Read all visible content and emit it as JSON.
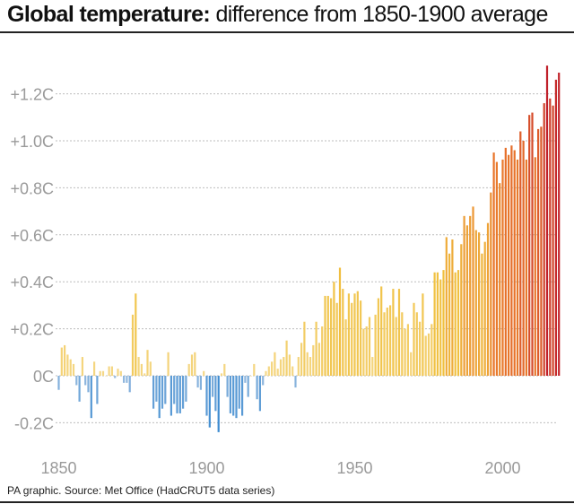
{
  "title": {
    "bold": "Global temperature:",
    "light": " difference from 1850-1900 average"
  },
  "source": "PA graphic. Source: Met Office (HadCRUT5 data series)",
  "colors": {
    "negative_light": "#9cbde0",
    "negative_dark": "#3a8ad0",
    "warm_low": "#f5d98a",
    "warm_mid": "#f0c040",
    "warm_high": "#e8742a",
    "hot": "#c0202a",
    "grid": "#bdbdbd",
    "tick_text": "#9a9a9a"
  },
  "chart_data": {
    "type": "bar",
    "title": "Global temperature: difference from 1850-1900 average",
    "xlabel": "",
    "ylabel": "",
    "unit": "°C",
    "xlim": [
      1850,
      2021
    ],
    "ylim": [
      -0.25,
      1.3
    ],
    "grid": true,
    "x_ticks": [
      {
        "value": 1850,
        "label": "1850"
      },
      {
        "value": 1900,
        "label": "1900"
      },
      {
        "value": 1950,
        "label": "1950"
      },
      {
        "value": 2000,
        "label": "2000"
      }
    ],
    "y_ticks": [
      {
        "value": 1.2,
        "label": "+1.2C"
      },
      {
        "value": 1.0,
        "label": "+1.0C"
      },
      {
        "value": 0.8,
        "label": "+0.8C"
      },
      {
        "value": 0.6,
        "label": "+0.6C"
      },
      {
        "value": 0.4,
        "label": "+0.4C"
      },
      {
        "value": 0.2,
        "label": "+0.2C"
      },
      {
        "value": 0.0,
        "label": "0C"
      },
      {
        "value": -0.2,
        "label": "-0.2C"
      }
    ],
    "start_year": 1850,
    "values": [
      -0.06,
      0.12,
      0.13,
      0.09,
      0.07,
      0.05,
      -0.04,
      -0.11,
      0.08,
      -0.04,
      -0.07,
      -0.18,
      0.06,
      -0.12,
      0.02,
      0.02,
      0.0,
      0.04,
      0.04,
      -0.01,
      0.03,
      0.02,
      -0.03,
      -0.03,
      -0.07,
      0.26,
      0.35,
      0.08,
      0.05,
      0.01,
      0.11,
      0.06,
      -0.14,
      -0.11,
      -0.18,
      -0.14,
      -0.12,
      0.1,
      -0.17,
      -0.12,
      -0.16,
      -0.16,
      -0.14,
      -0.11,
      0.05,
      0.09,
      0.1,
      -0.05,
      -0.06,
      0.02,
      -0.17,
      -0.22,
      -0.09,
      -0.15,
      -0.24,
      0.01,
      0.05,
      -0.09,
      -0.16,
      -0.17,
      -0.18,
      -0.14,
      -0.17,
      -0.03,
      -0.09,
      0.0,
      0.05,
      -0.1,
      -0.15,
      -0.04,
      0.02,
      0.04,
      0.06,
      0.1,
      0.03,
      0.07,
      0.08,
      0.15,
      0.09,
      0.04,
      -0.05,
      0.08,
      0.14,
      0.23,
      0.1,
      0.08,
      0.13,
      0.23,
      0.14,
      0.21,
      0.34,
      0.34,
      0.33,
      0.4,
      0.31,
      0.46,
      0.37,
      0.24,
      0.35,
      0.31,
      0.35,
      0.36,
      0.32,
      0.2,
      0.21,
      0.25,
      0.08,
      0.26,
      0.33,
      0.38,
      0.27,
      0.29,
      0.3,
      0.37,
      0.25,
      0.37,
      0.27,
      0.2,
      0.22,
      0.1,
      0.31,
      0.27,
      0.23,
      0.35,
      0.17,
      0.18,
      0.22,
      0.44,
      0.44,
      0.41,
      0.45,
      0.59,
      0.52,
      0.58,
      0.44,
      0.45,
      0.56,
      0.68,
      0.64,
      0.68,
      0.72,
      0.62,
      0.61,
      0.52,
      0.57,
      0.65,
      0.78,
      0.95,
      0.91,
      0.82,
      0.92,
      0.97,
      0.94,
      0.98,
      0.96,
      0.92,
      1.04,
      1.0,
      0.92,
      1.11,
      1.12,
      0.93,
      1.05,
      1.06,
      1.16,
      1.32,
      1.18,
      1.15,
      1.26,
      1.29
    ]
  }
}
